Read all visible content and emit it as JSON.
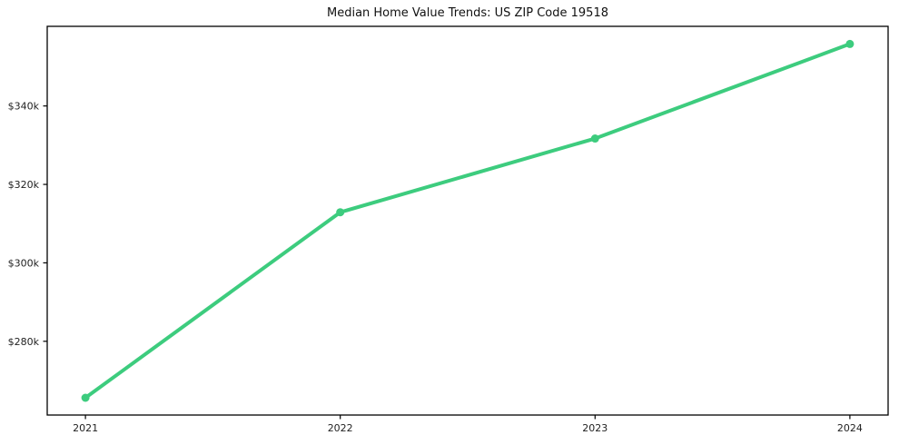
{
  "chart_data": {
    "type": "line",
    "title": "Median Home Value Trends: US ZIP Code 19518",
    "x": [
      2021,
      2022,
      2023,
      2024
    ],
    "values": [
      265600,
      312900,
      331700,
      355800
    ],
    "xtick_labels": [
      "2021",
      "2022",
      "2023",
      "2024"
    ],
    "ytick_values": [
      280000,
      300000,
      320000,
      340000
    ],
    "ytick_labels": [
      "$280k",
      "$300k",
      "$320k",
      "$340k"
    ],
    "xlim": [
      2020.85,
      2024.15
    ],
    "ylim": [
      261200,
      360300
    ],
    "grid": false,
    "legend": "none",
    "line_color": "#3dcc7e",
    "axis_color": "#000000",
    "tick_label_color": "#222222",
    "background": "#ffffff",
    "marker": "circle"
  }
}
